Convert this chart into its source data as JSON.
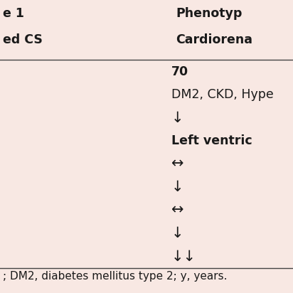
{
  "bg_color": "#f8e8e3",
  "line_color": "#444444",
  "text_color": "#1a1a1a",
  "header_row1_left": "e 1",
  "header_row1_right": "Phenotyp",
  "header_row2_left": "ed CS",
  "header_row2_right": "Cardiorena",
  "col2_rows": [
    "70",
    "DM2, CKD, Hype",
    "↓",
    "Left ventric",
    "↔",
    "↓",
    "↔",
    "↓",
    "↓↓"
  ],
  "row_bold": [
    true,
    false,
    false,
    true,
    false,
    false,
    false,
    false,
    false
  ],
  "row_is_arrow": [
    false,
    false,
    true,
    false,
    true,
    true,
    true,
    true,
    true
  ],
  "footer_text": "; DM2, diabetes mellitus type 2; y, years.",
  "title_fontsize": 12.5,
  "body_fontsize": 12.5,
  "footer_fontsize": 11.0,
  "arrow_fontsize": 15,
  "figsize": [
    4.12,
    4.12
  ],
  "dpi": 100
}
